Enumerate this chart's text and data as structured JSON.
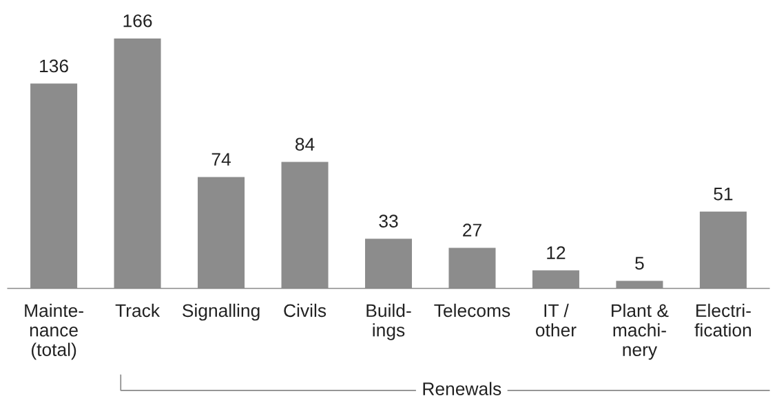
{
  "chart_data": {
    "type": "bar",
    "categories": [
      "Mainte-\nnance\n(total)",
      "Track",
      "Signalling",
      "Civils",
      "Build-\nings",
      "Telecoms",
      "IT /\nother",
      "Plant &\nmachi-\nnery",
      "Electri-\nfication"
    ],
    "values": [
      136,
      166,
      74,
      84,
      33,
      27,
      12,
      5,
      51
    ],
    "color": "#8c8c8c",
    "data_labels": true,
    "annotations": [
      "Renewals"
    ],
    "grid": false,
    "legend": false
  }
}
